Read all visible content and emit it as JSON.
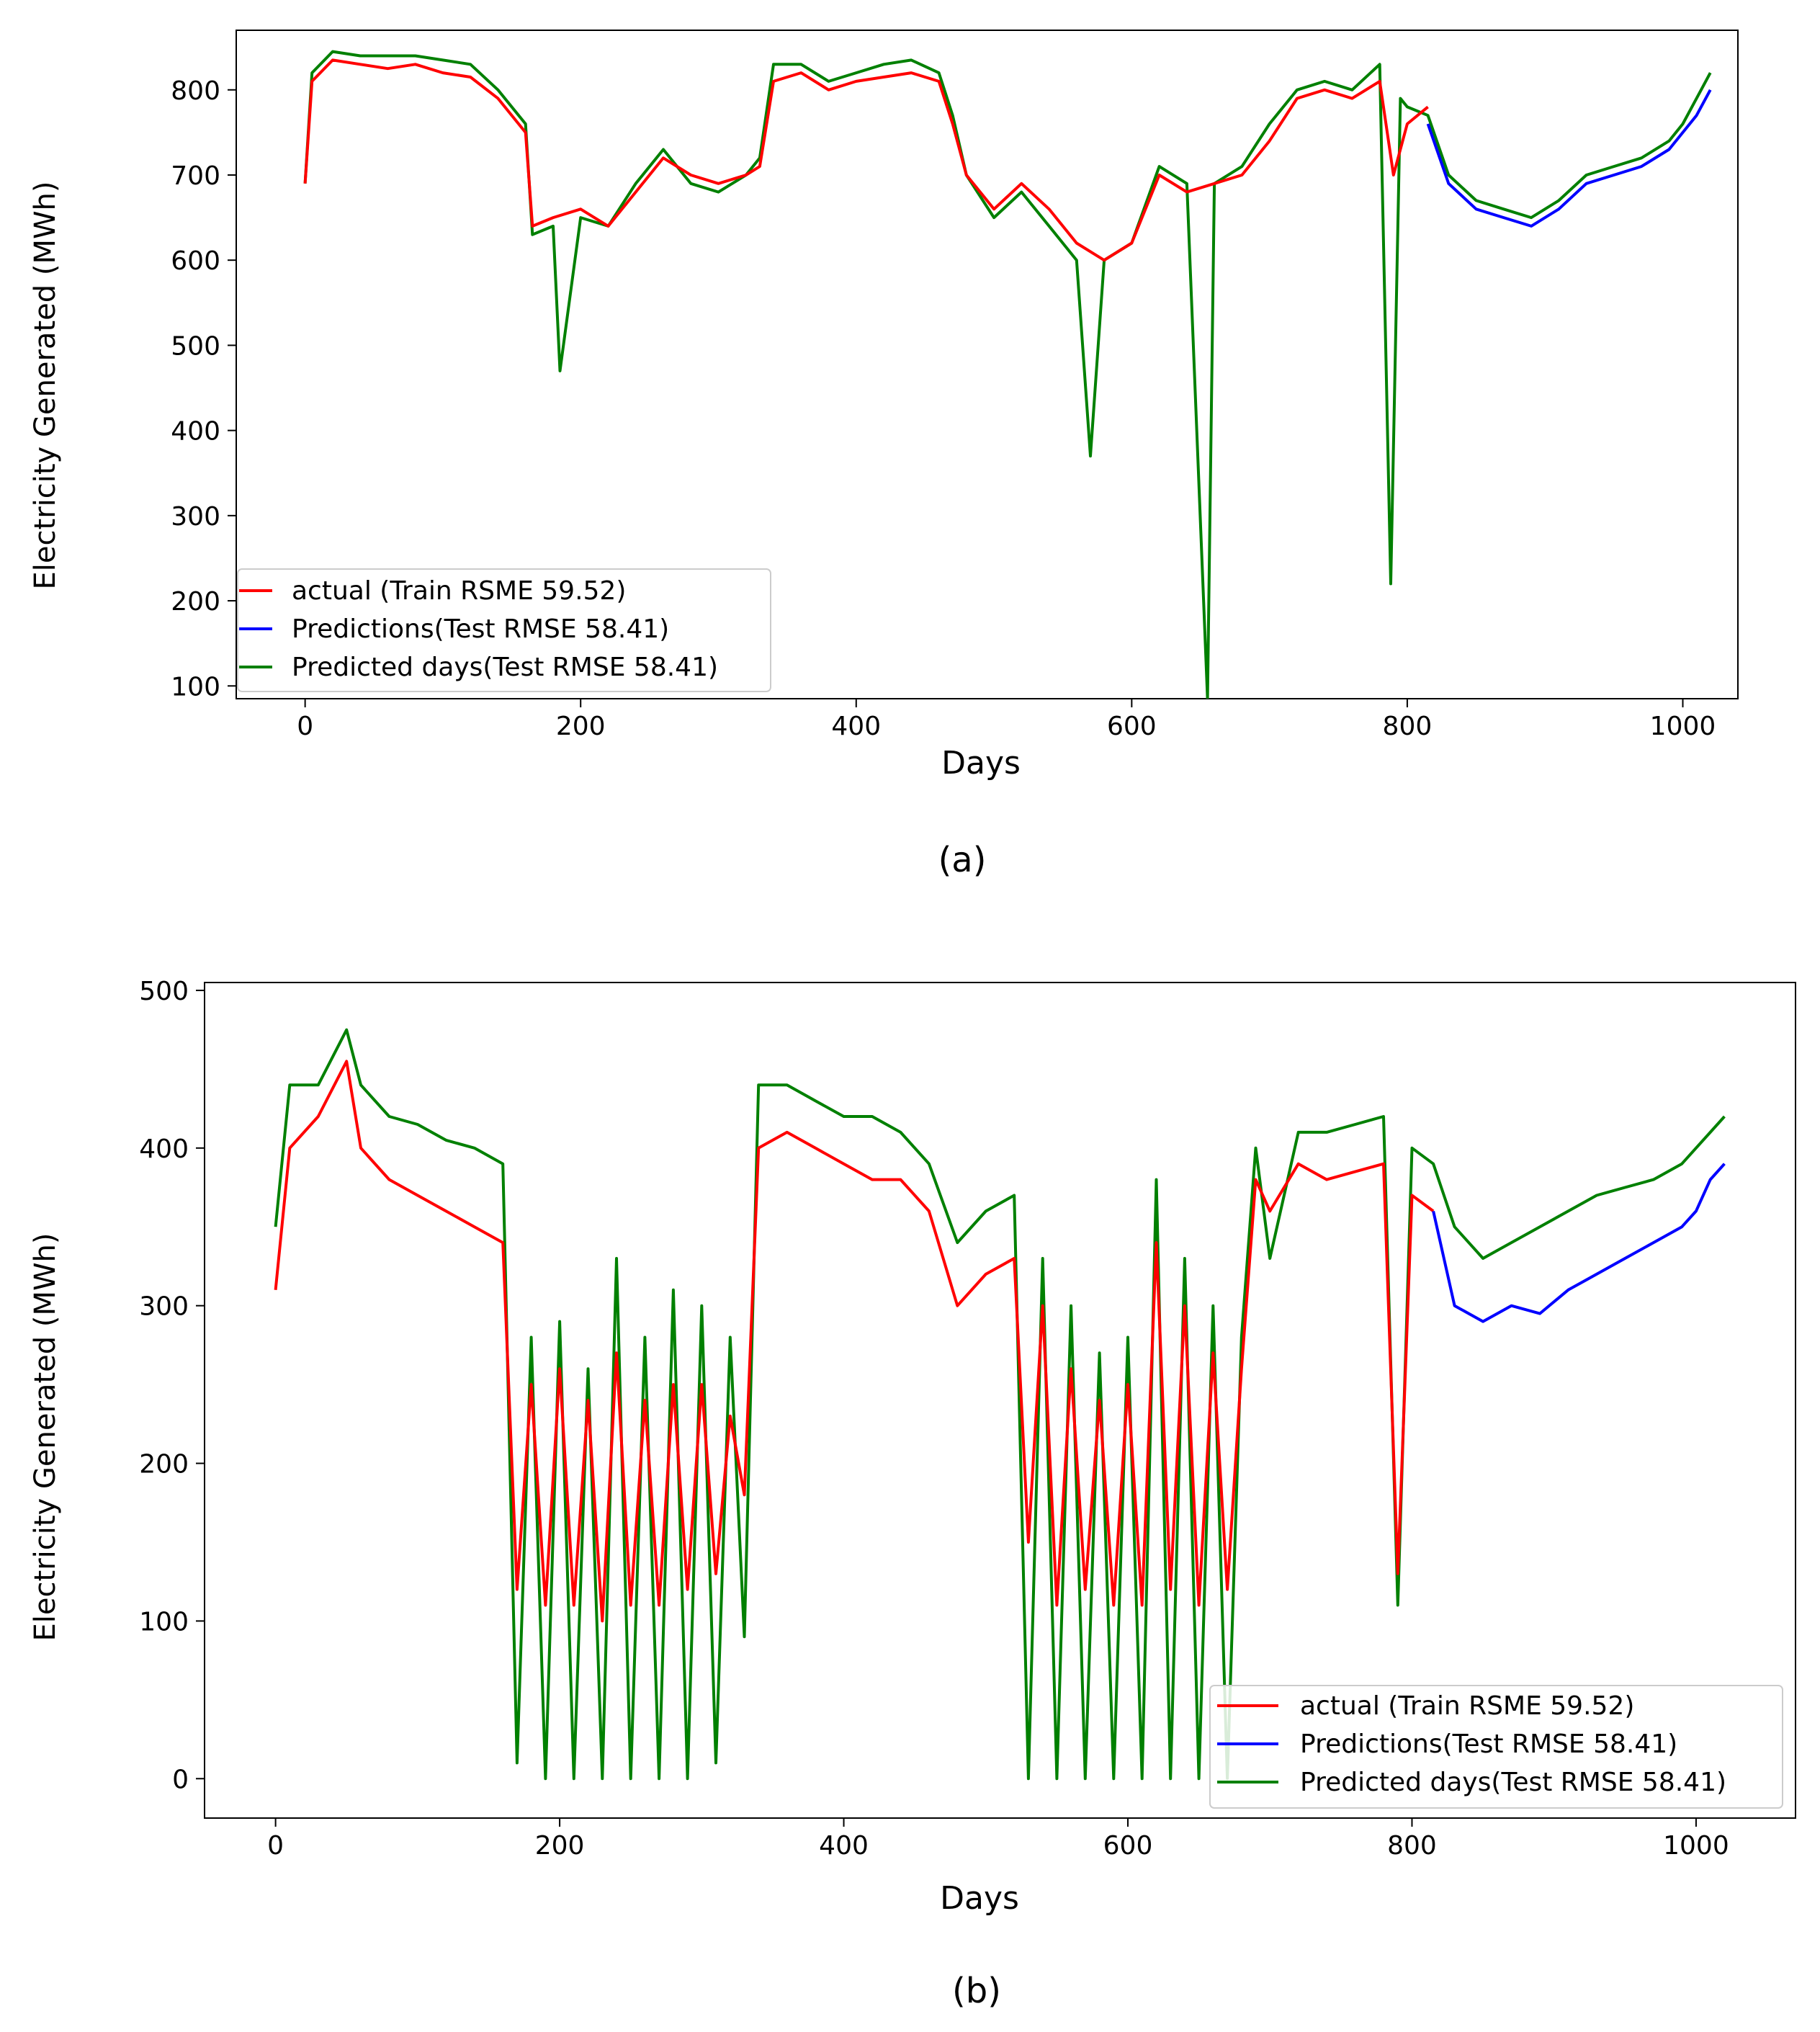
{
  "colors": {
    "actual": "#ff0000",
    "predictions": "#0000ff",
    "predicted_days": "#008000"
  },
  "chart_data": [
    {
      "type": "line",
      "caption": "(a)",
      "xlabel": "Days",
      "ylabel": "Electricity Generated  (MWh)",
      "xlim": [
        -50,
        1040
      ],
      "ylim": [
        85,
        870
      ],
      "xticks": [
        0,
        200,
        400,
        600,
        800,
        1000
      ],
      "xtick_labels": [
        "0",
        "200",
        "400",
        "600",
        "800",
        "1000"
      ],
      "yticks": [
        100,
        200,
        300,
        400,
        500,
        600,
        700,
        800
      ],
      "ytick_labels": [
        "100",
        "200",
        "300",
        "400",
        "500",
        "600",
        "700",
        "800"
      ],
      "legend_position": "lower-left",
      "legend": [
        "actual (Train RSME 59.52)",
        "Predictions(Test RMSE 58.41)",
        "Predicted days(Test RMSE 58.41)"
      ],
      "series": [
        {
          "name": "actual (Train RSME 59.52)",
          "color": "#ff0000",
          "x": [
            0,
            5,
            20,
            40,
            60,
            80,
            100,
            120,
            140,
            160,
            165,
            180,
            200,
            220,
            240,
            260,
            280,
            300,
            320,
            330,
            340,
            360,
            380,
            400,
            420,
            440,
            460,
            470,
            480,
            500,
            520,
            540,
            560,
            580,
            600,
            620,
            640,
            660,
            680,
            700,
            720,
            740,
            760,
            780,
            790,
            800,
            815
          ],
          "values": [
            690,
            810,
            835,
            830,
            825,
            830,
            820,
            815,
            790,
            750,
            640,
            650,
            660,
            640,
            680,
            720,
            700,
            690,
            700,
            710,
            810,
            820,
            800,
            810,
            815,
            820,
            810,
            760,
            700,
            660,
            690,
            660,
            620,
            600,
            620,
            700,
            680,
            690,
            700,
            740,
            790,
            800,
            790,
            810,
            700,
            760,
            780
          ]
        },
        {
          "name": "Predictions(Test RMSE 58.41)",
          "color": "#0000ff",
          "x": [
            815,
            830,
            850,
            870,
            890,
            910,
            930,
            950,
            970,
            990,
            1000,
            1010,
            1020
          ],
          "values": [
            760,
            690,
            660,
            650,
            640,
            660,
            690,
            700,
            710,
            730,
            750,
            770,
            800
          ]
        },
        {
          "name": "Predicted days(Test RMSE 58.41)",
          "color": "#008000",
          "x": [
            0,
            5,
            20,
            40,
            60,
            80,
            100,
            120,
            140,
            160,
            165,
            180,
            185,
            200,
            220,
            240,
            260,
            280,
            300,
            320,
            330,
            340,
            360,
            380,
            400,
            420,
            440,
            460,
            470,
            480,
            500,
            520,
            540,
            560,
            570,
            580,
            600,
            620,
            640,
            655,
            660,
            680,
            700,
            720,
            740,
            760,
            780,
            788,
            795,
            800,
            815,
            830,
            850,
            870,
            890,
            910,
            930,
            950,
            970,
            990,
            1000,
            1010,
            1020
          ],
          "values": [
            690,
            820,
            845,
            840,
            840,
            840,
            835,
            830,
            800,
            760,
            630,
            640,
            470,
            650,
            640,
            690,
            730,
            690,
            680,
            700,
            720,
            830,
            830,
            810,
            820,
            830,
            835,
            820,
            770,
            700,
            650,
            680,
            640,
            600,
            370,
            600,
            620,
            710,
            690,
            85,
            690,
            710,
            760,
            800,
            810,
            800,
            830,
            220,
            790,
            780,
            770,
            700,
            670,
            660,
            650,
            670,
            700,
            710,
            720,
            740,
            760,
            790,
            820
          ]
        }
      ]
    },
    {
      "type": "line",
      "caption": "(b)",
      "xlabel": "Days",
      "ylabel": "Electricity Generated  (MWh)",
      "xlim": [
        -50,
        1070
      ],
      "ylim": [
        -25,
        505
      ],
      "xticks": [
        0,
        200,
        400,
        600,
        800,
        1000
      ],
      "xtick_labels": [
        "0",
        "200",
        "400",
        "600",
        "800",
        "1000"
      ],
      "yticks": [
        0,
        100,
        200,
        300,
        400,
        500
      ],
      "ytick_labels": [
        "0",
        "100",
        "200",
        "300",
        "400",
        "500"
      ],
      "legend_position": "lower-right",
      "legend": [
        "actual (Train RSME 59.52)",
        "Predictions(Test RMSE 58.41)",
        "Predicted days(Test RMSE 58.41)"
      ],
      "series": [
        {
          "name": "actual (Train RSME 59.52)",
          "color": "#ff0000",
          "x": [
            0,
            10,
            30,
            50,
            60,
            80,
            100,
            120,
            140,
            160,
            170,
            180,
            190,
            200,
            210,
            220,
            230,
            240,
            250,
            260,
            270,
            280,
            290,
            300,
            310,
            320,
            330,
            340,
            360,
            380,
            400,
            420,
            440,
            460,
            480,
            500,
            520,
            530,
            540,
            550,
            560,
            570,
            580,
            590,
            600,
            610,
            620,
            630,
            640,
            650,
            660,
            670,
            680,
            690,
            700,
            720,
            740,
            760,
            780,
            790,
            800,
            815
          ],
          "values": [
            310,
            400,
            420,
            455,
            400,
            380,
            370,
            360,
            350,
            340,
            120,
            250,
            110,
            260,
            110,
            240,
            100,
            270,
            110,
            240,
            110,
            250,
            120,
            250,
            130,
            230,
            180,
            400,
            410,
            400,
            390,
            380,
            380,
            360,
            300,
            320,
            330,
            150,
            300,
            110,
            260,
            120,
            240,
            110,
            250,
            110,
            340,
            120,
            300,
            110,
            270,
            120,
            260,
            380,
            360,
            390,
            380,
            385,
            390,
            130,
            370,
            360
          ]
        },
        {
          "name": "Predictions(Test RMSE 58.41)",
          "color": "#0000ff",
          "x": [
            815,
            830,
            850,
            870,
            890,
            910,
            930,
            950,
            970,
            990,
            1000,
            1010,
            1020
          ],
          "values": [
            360,
            300,
            290,
            300,
            295,
            310,
            320,
            330,
            340,
            350,
            360,
            380,
            390
          ]
        },
        {
          "name": "Predicted days(Test RMSE 58.41)",
          "color": "#008000",
          "x": [
            0,
            10,
            30,
            50,
            60,
            80,
            100,
            120,
            140,
            160,
            170,
            180,
            190,
            200,
            210,
            220,
            230,
            240,
            250,
            260,
            270,
            280,
            290,
            300,
            310,
            320,
            330,
            340,
            360,
            380,
            400,
            420,
            440,
            460,
            480,
            500,
            520,
            530,
            540,
            550,
            560,
            570,
            580,
            590,
            600,
            610,
            620,
            630,
            640,
            650,
            660,
            670,
            680,
            690,
            700,
            720,
            740,
            760,
            780,
            790,
            800,
            815,
            830,
            850,
            870,
            890,
            910,
            930,
            950,
            970,
            990,
            1000,
            1010,
            1020
          ],
          "values": [
            350,
            440,
            440,
            475,
            440,
            420,
            415,
            405,
            400,
            390,
            10,
            280,
            0,
            290,
            0,
            260,
            0,
            330,
            0,
            280,
            0,
            310,
            0,
            300,
            10,
            280,
            90,
            440,
            440,
            430,
            420,
            420,
            410,
            390,
            340,
            360,
            370,
            0,
            330,
            0,
            300,
            0,
            270,
            0,
            280,
            0,
            380,
            0,
            330,
            0,
            300,
            0,
            280,
            400,
            330,
            410,
            410,
            415,
            420,
            110,
            400,
            390,
            350,
            330,
            340,
            350,
            360,
            370,
            375,
            380,
            390,
            400,
            410,
            420
          ]
        }
      ]
    }
  ]
}
